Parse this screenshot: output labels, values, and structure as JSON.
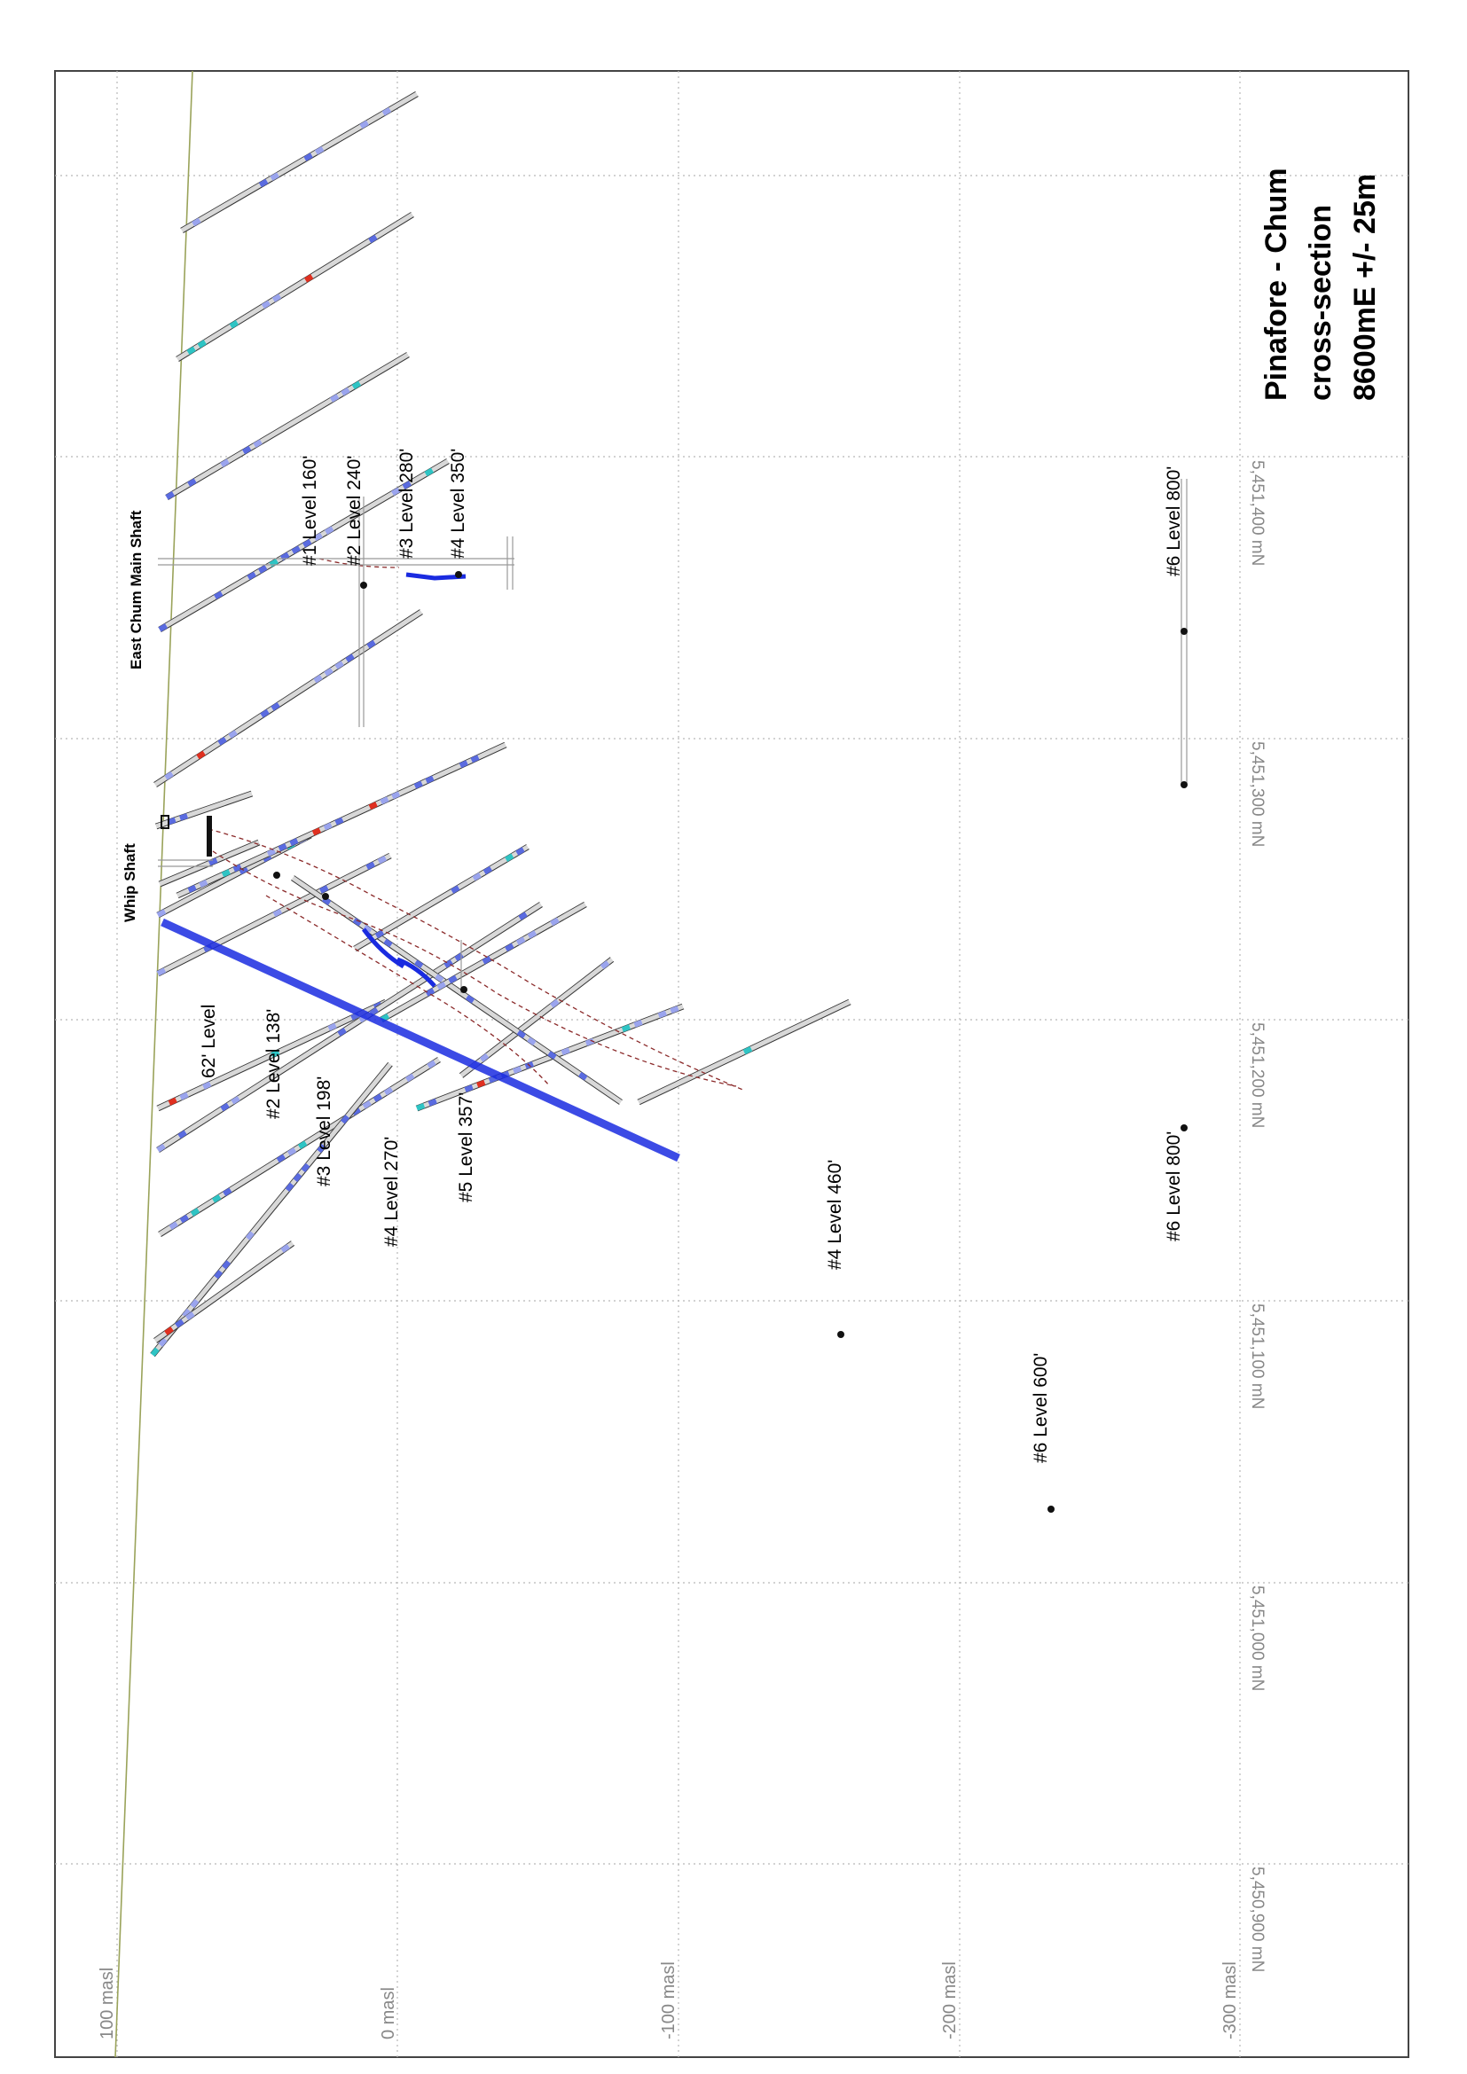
{
  "title": {
    "line1": "Pinafore - Chum",
    "line2": "cross-section",
    "line3": "8600mE +/- 25m"
  },
  "elevation_labels": [
    "100 masl",
    "0 masl",
    "-100 masl",
    "-200 masl",
    "-300 masl"
  ],
  "northing_labels": [
    "5,451,400 mN",
    "5,451,300 mN",
    "5,451,200 mN",
    "5,451,100 mN",
    "5,451,000 mN",
    "5,450,900 mN"
  ],
  "shaft_labels": {
    "east_chum": "East Chum Main Shaft",
    "whip": "Whip Shaft"
  },
  "level_labels": {
    "l1_160": "#1 Level 160'",
    "l2_240": "#2 Level 240'",
    "l3_280": "#3 Level 280'",
    "l4_350": "#4 Level 350'",
    "l6_800_top": "#6 Level 800'",
    "l62": "62' Level",
    "l2_138": "#2 Level 138'",
    "l3_198": "#3 Level 198'",
    "l4_270": "#4 Level 270'",
    "l5_357": "#5 Level 357'",
    "l4_460": "#4 Level 460'",
    "l6_800_mid": "#6 Level 800'",
    "l6_600": "#6 Level 600'"
  },
  "colors": {
    "frame": "#444444",
    "grid": "#b0b0b0",
    "topography": "#9aa35a",
    "drillhole": "#333333",
    "assay_low": "#5a6be0",
    "assay_mid": "#2ec4c4",
    "assay_high": "#e03020",
    "vein": "#1a2be0",
    "interpretation": "#8b2a2a",
    "label_gray": "#888888"
  }
}
